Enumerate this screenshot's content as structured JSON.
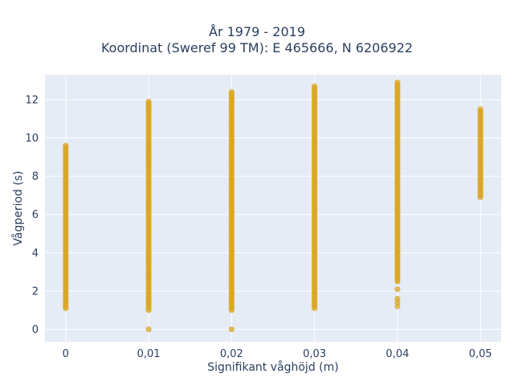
{
  "chart_data": {
    "type": "scatter",
    "title_lines": [
      "År 1979 - 2019",
      "Koordinat (Sweref 99 TM): E 465666, N 6206922"
    ],
    "xlabel": "Signifikant våghöjd (m)",
    "ylabel": "Vågperiod (s)",
    "xlim": [
      -0.0025,
      0.0525
    ],
    "ylim": [
      -0.65,
      13.3
    ],
    "x_ticks": [
      0,
      0.01,
      0.02,
      0.03,
      0.04,
      0.05
    ],
    "x_tick_labels": [
      "0",
      "0,01",
      "0,02",
      "0,03",
      "0,04",
      "0,05"
    ],
    "y_ticks": [
      0,
      2,
      4,
      6,
      8,
      10,
      12
    ],
    "y_tick_labels": [
      "0",
      "2",
      "4",
      "6",
      "8",
      "10",
      "12"
    ],
    "grid": true,
    "marker_color": "#DAA520",
    "plot_bg": "#E5ECF6",
    "columns": [
      {
        "x": 0,
        "min": 1.1,
        "max": 9.6,
        "zeros": false,
        "extra": []
      },
      {
        "x": 0.01,
        "min": 1.0,
        "max": 11.9,
        "zeros": true,
        "extra": []
      },
      {
        "x": 0.02,
        "min": 1.0,
        "max": 12.4,
        "zeros": true,
        "extra": []
      },
      {
        "x": 0.03,
        "min": 1.1,
        "max": 12.7,
        "zeros": false,
        "extra": []
      },
      {
        "x": 0.04,
        "min": 2.5,
        "max": 12.9,
        "zeros": false,
        "extra": [
          2.1,
          1.6,
          1.4,
          1.2
        ]
      },
      {
        "x": 0.05,
        "min": 6.9,
        "max": 11.5,
        "zeros": false,
        "extra": []
      }
    ]
  }
}
